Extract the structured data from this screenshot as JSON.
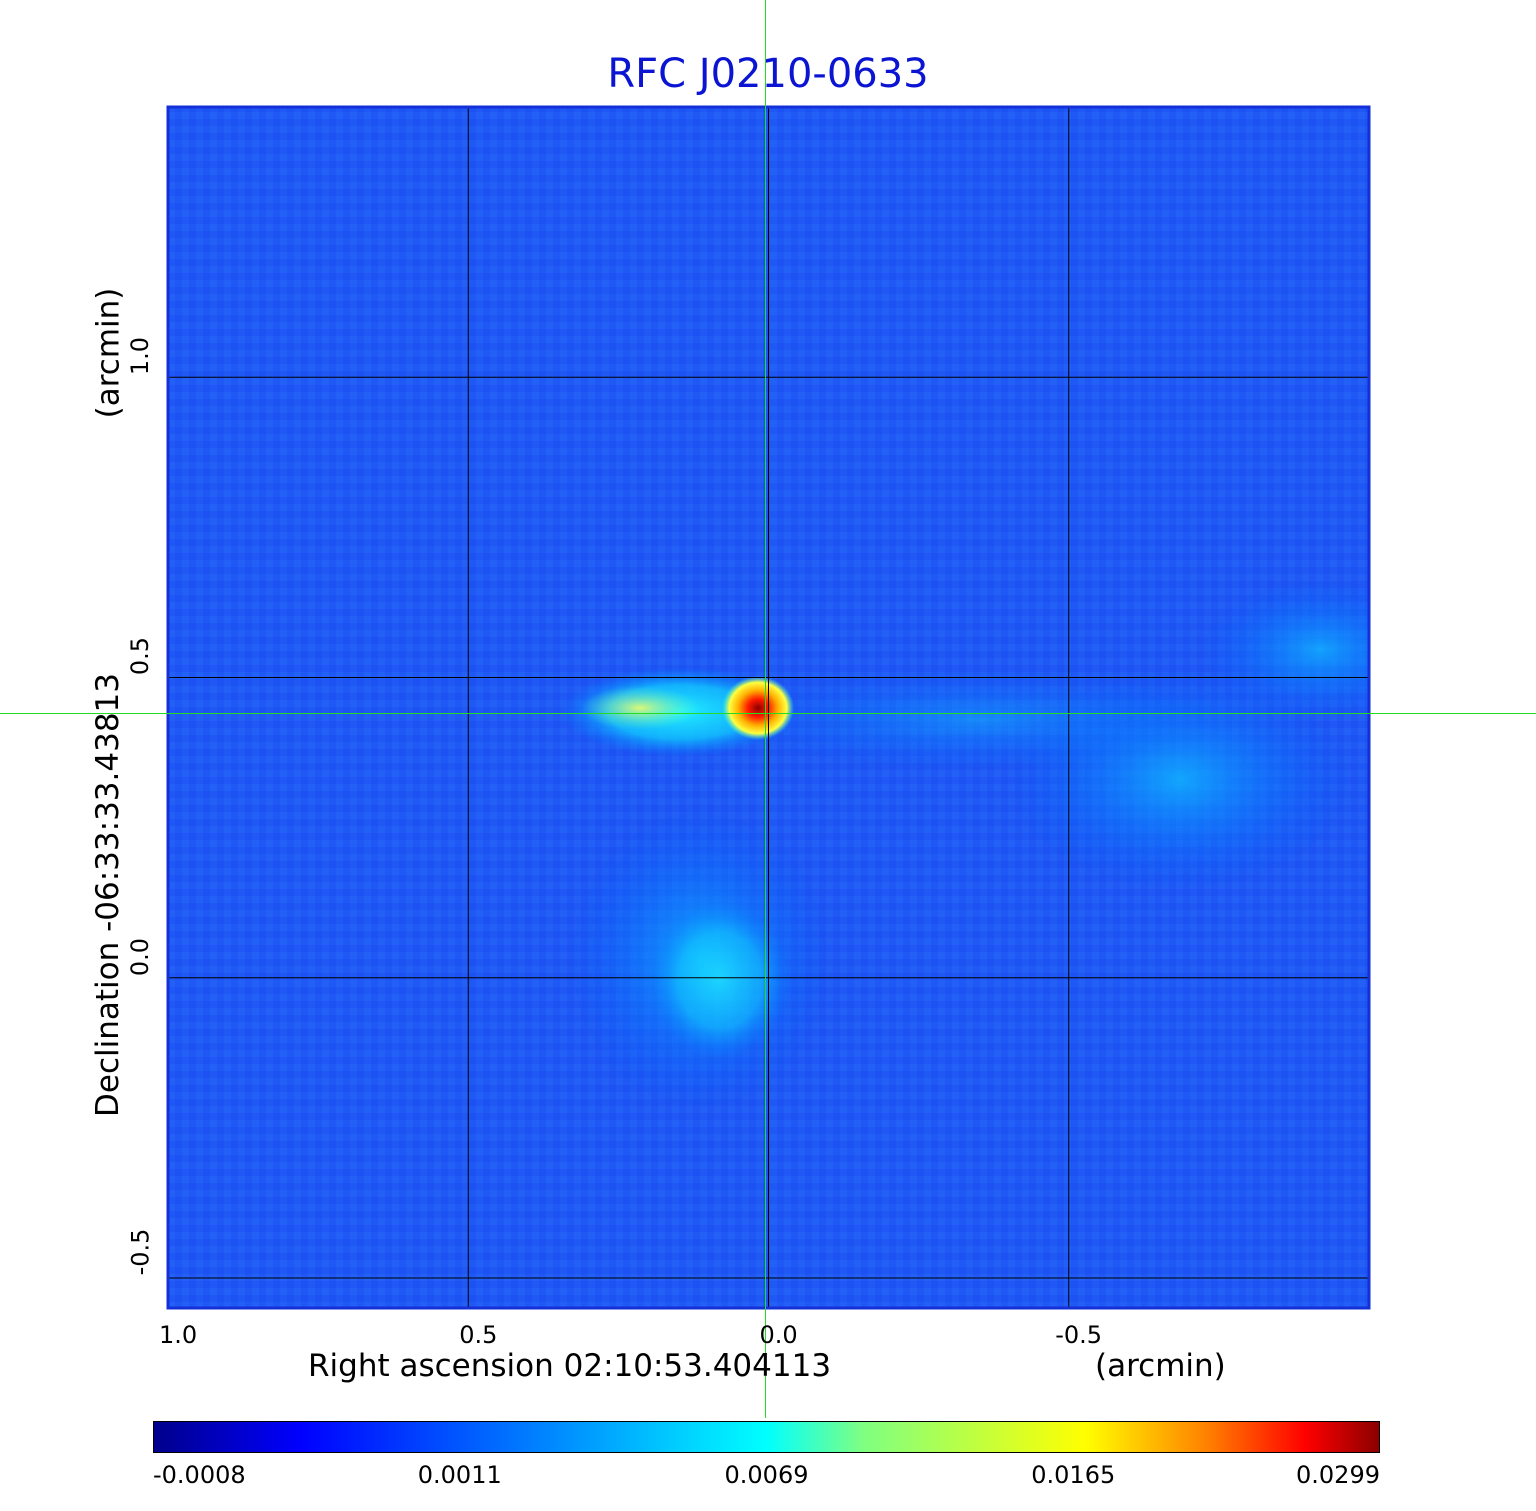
{
  "chart_data": {
    "type": "heatmap",
    "title": "RFC J0210-0633",
    "xlabel": "Right ascension  02:10:53.404113",
    "xunit": "(arcmin)",
    "ylabel": "Declination  -06:33:33.43813",
    "yunit": "(arcmin)",
    "x_ticks": [
      "1.0",
      "0.5",
      "0.0",
      "-0.5"
    ],
    "x_tick_values": [
      1.0,
      0.5,
      0.0,
      -0.5
    ],
    "y_ticks": [
      "1.0",
      "0.5",
      "0.0",
      "-0.5"
    ],
    "y_tick_values": [
      1.0,
      0.5,
      0.0,
      -0.5
    ],
    "xlim": [
      1.0,
      -1.0
    ],
    "ylim": [
      -0.55,
      1.45
    ],
    "grid": true,
    "crosshair": {
      "x": 0.0,
      "y": 0.44,
      "color": "#22dd22"
    },
    "colormap": "jet",
    "colorbar_ticks": [
      "-0.0008",
      "0.0011",
      "0.0069",
      "0.0165",
      "0.0299"
    ],
    "colorbar_values": [
      -0.0008,
      0.0011,
      0.0069,
      0.0165,
      0.0299
    ],
    "peak": {
      "x": 0.02,
      "y": 0.44,
      "value": 0.0299
    },
    "features": [
      {
        "x": 0.12,
        "y": 0.44,
        "value": 0.006
      },
      {
        "x": -0.1,
        "y": 0.44,
        "value": 0.002
      },
      {
        "x": 0.1,
        "y": 0.03,
        "value": 0.0016
      },
      {
        "x": -0.7,
        "y": 0.3,
        "value": 0.0014
      },
      {
        "x": -0.95,
        "y": 0.55,
        "value": 0.0012
      }
    ]
  }
}
